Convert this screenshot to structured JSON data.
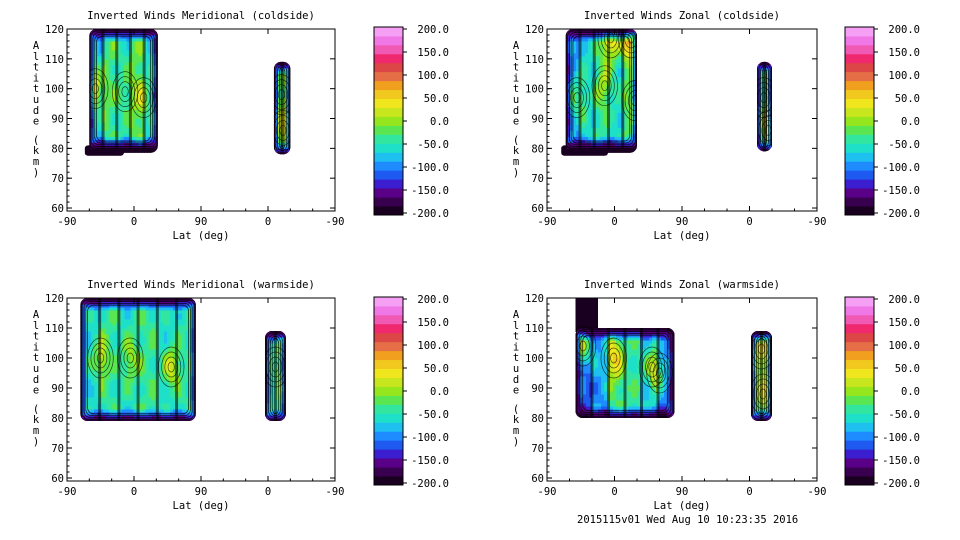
{
  "footer": "2015115v01 Wed Aug 10 10:23:35 2016",
  "colormap": [
    "#1a0020",
    "#3a0050",
    "#5a0088",
    "#3a1ed0",
    "#1e5af0",
    "#1e8cff",
    "#1ec0f0",
    "#1ee0c8",
    "#32e6a0",
    "#5ae650",
    "#96e61e",
    "#c8e61e",
    "#f0e61e",
    "#f0c81e",
    "#f0a01e",
    "#e66e46",
    "#dc4646",
    "#f0286e",
    "#f05ab4",
    "#f078e6",
    "#f5a0f5"
  ],
  "chart_data": [
    {
      "type": "heatmap",
      "title": "Inverted Winds Meridional (coldside)",
      "xlabel": "Lat (deg)",
      "ylabel": "Altitude (km)",
      "xticks": [
        "-90",
        "0",
        "90",
        "0",
        "-90"
      ],
      "yticks": [
        60,
        70,
        80,
        90,
        100,
        110,
        120
      ],
      "ylim": [
        59,
        120
      ],
      "colorbar": {
        "range": [
          -200,
          200
        ],
        "ticks": [
          "200.0",
          "150.0",
          "100.0",
          "50.0",
          "0.0",
          "-50.0",
          "-100.0",
          "-150.0",
          "-200.0"
        ]
      },
      "regions": [
        {
          "x0": -60,
          "x1": 32,
          "y0": 80,
          "y1": 120,
          "top_y": 120,
          "lower_band": [
            -60,
            -20,
            80
          ],
          "bands": [
            -70,
            -30,
            -45,
            -20,
            -60
          ],
          "hot": [
            [
              -52,
              100,
              100
            ],
            [
              -12,
              99,
              22
            ],
            [
              13,
              97,
              45
            ]
          ]
        },
        {
          "x0": 188,
          "x1": 210,
          "y0": 78,
          "y1": 109,
          "top_y": 109,
          "bands": [
            -40,
            -20
          ],
          "hot": [
            [
              200,
              86,
              58
            ],
            [
              198,
              98,
              28
            ]
          ]
        }
      ]
    },
    {
      "type": "heatmap",
      "title": "Inverted Winds Zonal (coldside)",
      "xlabel": "Lat (deg)",
      "ylabel": "Altitude (km)",
      "xticks": [
        "-90",
        "0",
        "90",
        "0",
        "-90"
      ],
      "yticks": [
        60,
        70,
        80,
        90,
        100,
        110,
        120
      ],
      "ylim": [
        59,
        120
      ],
      "colorbar": {
        "range": [
          -200,
          200
        ],
        "ticks": [
          "200.0",
          "150.0",
          "100.0",
          "50.0",
          "0.0",
          "-50.0",
          "-100.0",
          "-150.0",
          "-200.0"
        ]
      },
      "regions": [
        {
          "x0": -65,
          "x1": 30,
          "y0": 80,
          "y1": 120,
          "top_y": 120,
          "lower_band": [
            -65,
            -15,
            80
          ],
          "bands": [
            -90,
            -60,
            -40,
            -55,
            -30
          ],
          "hot": [
            [
              -50,
              97,
              68
            ],
            [
              -13,
              101,
              48
            ],
            [
              -5,
              117,
              115
            ],
            [
              22,
              117,
              125
            ],
            [
              27,
              96,
              40
            ]
          ]
        },
        {
          "x0": 190,
          "x1": 210,
          "y0": 79,
          "y1": 109,
          "top_y": 109,
          "bands": [
            -40,
            -25
          ],
          "hot": [
            [
              205,
              86,
              75
            ],
            [
              199,
              97,
              20
            ]
          ]
        }
      ]
    },
    {
      "type": "heatmap",
      "title": "Inverted Winds Meridional (warmside)",
      "xlabel": "Lat (deg)",
      "ylabel": "Altitude (km)",
      "xticks": [
        "-90",
        "0",
        "90",
        "0",
        "-90"
      ],
      "yticks": [
        60,
        70,
        80,
        90,
        100,
        110,
        120
      ],
      "ylim": [
        59,
        120
      ],
      "colorbar": {
        "range": [
          -200,
          200
        ],
        "ticks": [
          "200.0",
          "150.0",
          "100.0",
          "50.0",
          "0.0",
          "-50.0",
          "-100.0",
          "-150.0",
          "-200.0"
        ]
      },
      "regions": [
        {
          "x0": -72,
          "x1": 83,
          "y0": 79,
          "y1": 120,
          "top_y": 120,
          "bands": [
            -60,
            -40,
            -50,
            -35,
            -55,
            -45
          ],
          "hot": [
            [
              -45,
              100,
              68
            ],
            [
              -5,
              100,
              55
            ],
            [
              50,
              97,
              75
            ]
          ]
        },
        {
          "x0": 176,
          "x1": 204,
          "y0": 79,
          "y1": 109,
          "top_y": 109,
          "bands": [
            -50,
            -30
          ],
          "hot": [
            [
              190,
              97,
              10
            ]
          ]
        }
      ]
    },
    {
      "type": "heatmap",
      "title": "Inverted Winds Zonal (warmside)",
      "xlabel": "Lat (deg)",
      "ylabel": "Altitude (km)",
      "xticks": [
        "-90",
        "0",
        "90",
        "0",
        "-90"
      ],
      "yticks": [
        60,
        70,
        80,
        90,
        100,
        110,
        120
      ],
      "ylim": [
        59,
        120
      ],
      "colorbar": {
        "range": [
          -200,
          200
        ],
        "ticks": [
          "200.0",
          "150.0",
          "100.0",
          "50.0",
          "0.0",
          "-50.0",
          "-100.0",
          "-150.0",
          "-200.0"
        ]
      },
      "regions": [
        {
          "x0": -52,
          "x1": 80,
          "y0": 80,
          "y1": 119,
          "top_y": 110,
          "top_left": [
            -52,
            -22,
            120
          ],
          "bands": [
            -120,
            -90,
            -30,
            -40,
            -70,
            -110
          ],
          "hot": [
            [
              -42,
              104,
              125
            ],
            [
              -1,
              100,
              82
            ],
            [
              50,
              97,
              55
            ],
            [
              60,
              95,
              70
            ]
          ]
        },
        {
          "x0": 182,
          "x1": 210,
          "y0": 79,
          "y1": 109,
          "top_y": 109,
          "bands": [
            -30,
            -20
          ],
          "hot": [
            [
              196,
              103,
              62
            ],
            [
              198,
              88,
              38
            ]
          ]
        }
      ]
    }
  ]
}
